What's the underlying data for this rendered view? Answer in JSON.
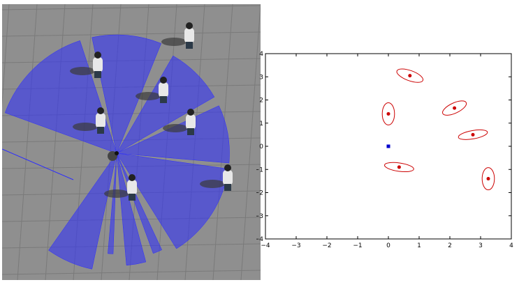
{
  "simulation": {
    "floor_color": "#8f8f8f",
    "grid_color": "#7a7a7a",
    "scan_color": "#2b2bff",
    "scan_sectors": [
      {
        "start_deg": 200,
        "end_deg": 252,
        "radius": 1.0
      },
      {
        "start_deg": 258,
        "end_deg": 292,
        "radius": 1.0
      },
      {
        "start_deg": 300,
        "end_deg": 330,
        "radius": 0.95
      },
      {
        "start_deg": 335,
        "end_deg": 365,
        "radius": 0.95
      },
      {
        "start_deg": 368,
        "end_deg": 418,
        "radius": 0.95
      },
      {
        "start_deg": 425,
        "end_deg": 430,
        "radius": 0.9
      },
      {
        "start_deg": 435,
        "end_deg": 445,
        "radius": 0.95
      },
      {
        "start_deg": 452,
        "end_deg": 455,
        "radius": 0.85
      },
      {
        "start_deg": 462,
        "end_deg": 485,
        "radius": 1.0
      }
    ],
    "people_icon": "person-icon",
    "robot_icon": "robot-icon"
  },
  "chart_data": {
    "type": "scatter",
    "title": "",
    "xlabel": "",
    "ylabel": "",
    "xlim": [
      -4,
      4
    ],
    "ylim": [
      -4,
      4
    ],
    "xticks": [
      "−4",
      "−3",
      "−2",
      "−1",
      "0",
      "1",
      "2",
      "3",
      "4"
    ],
    "yticks": [
      "4",
      "3",
      "2",
      "1",
      "0",
      "−1",
      "−2",
      "−3",
      "−4"
    ],
    "grid": false,
    "robot": {
      "x": 0.0,
      "y": 0.0,
      "color": "#0000cc",
      "marker": "square"
    },
    "people_color": "#cc0000",
    "people": [
      {
        "x": 0.7,
        "y": 3.05,
        "rx": 0.45,
        "ry": 0.22,
        "angle_deg": -20
      },
      {
        "x": 0.0,
        "y": 1.4,
        "rx": 0.2,
        "ry": 0.48,
        "angle_deg": 0
      },
      {
        "x": 2.15,
        "y": 1.65,
        "rx": 0.42,
        "ry": 0.22,
        "angle_deg": 25
      },
      {
        "x": 2.75,
        "y": 0.5,
        "rx": 0.48,
        "ry": 0.18,
        "angle_deg": 10
      },
      {
        "x": 0.35,
        "y": -0.9,
        "rx": 0.48,
        "ry": 0.18,
        "angle_deg": -8
      },
      {
        "x": 3.25,
        "y": -1.4,
        "rx": 0.2,
        "ry": 0.48,
        "angle_deg": 0
      }
    ]
  }
}
